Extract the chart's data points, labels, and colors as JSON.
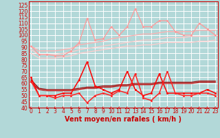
{
  "x": [
    0,
    1,
    2,
    3,
    4,
    5,
    6,
    7,
    8,
    9,
    10,
    11,
    12,
    13,
    14,
    15,
    16,
    17,
    18,
    19,
    20,
    21,
    22,
    23
  ],
  "xlabel": "Vent moyen/en rafales ( km/h )",
  "ylim": [
    40,
    128
  ],
  "yticks": [
    40,
    45,
    50,
    55,
    60,
    65,
    70,
    75,
    80,
    85,
    90,
    95,
    100,
    105,
    110,
    115,
    120,
    125
  ],
  "xticks": [
    0,
    1,
    2,
    3,
    4,
    5,
    6,
    7,
    8,
    9,
    10,
    11,
    12,
    13,
    14,
    15,
    16,
    17,
    18,
    19,
    20,
    21,
    22,
    23
  ],
  "background_color": "#b2d8d8",
  "grid_color": "#ffffff",
  "series": [
    {
      "data": [
        91,
        84,
        84,
        83,
        83,
        87,
        94,
        114,
        96,
        97,
        107,
        100,
        107,
        122,
        107,
        107,
        112,
        112,
        103,
        100,
        100,
        110,
        105,
        100
      ],
      "color": "#ff9999",
      "linewidth": 0.9,
      "marker": "o",
      "markersize": 1.8,
      "zorder": 3
    },
    {
      "data": [
        91,
        87,
        87,
        87,
        88,
        89,
        92,
        93,
        94,
        95,
        97,
        98,
        99,
        100,
        101,
        101,
        102,
        103,
        103,
        103,
        103,
        104,
        104,
        104
      ],
      "color": "#ffb0b0",
      "linewidth": 0.9,
      "marker": null,
      "markersize": 0,
      "zorder": 2
    },
    {
      "data": [
        88,
        84,
        84,
        84,
        85,
        86,
        88,
        89,
        90,
        91,
        92,
        93,
        94,
        95,
        96,
        96,
        97,
        98,
        98,
        98,
        99,
        99,
        99,
        100
      ],
      "color": "#ffcccc",
      "linewidth": 0.9,
      "marker": null,
      "markersize": 0,
      "zorder": 2
    },
    {
      "data": [
        85,
        81,
        81,
        81,
        82,
        83,
        85,
        86,
        87,
        88,
        89,
        90,
        91,
        91,
        92,
        92,
        93,
        94,
        94,
        94,
        94,
        95,
        95,
        96
      ],
      "color": "#ffcccc",
      "linewidth": 0.9,
      "marker": null,
      "markersize": 0,
      "zorder": 2
    },
    {
      "data": [
        65,
        50,
        50,
        50,
        52,
        52,
        63,
        78,
        58,
        55,
        52,
        55,
        70,
        55,
        50,
        52,
        68,
        52,
        52,
        52,
        52,
        52,
        55,
        52
      ],
      "color": "#ff0000",
      "linewidth": 1.1,
      "marker": "o",
      "markersize": 1.8,
      "zorder": 5
    },
    {
      "data": [
        63,
        56,
        55,
        55,
        55,
        55,
        56,
        57,
        57,
        58,
        58,
        59,
        59,
        60,
        60,
        60,
        61,
        61,
        61,
        61,
        61,
        62,
        62,
        62
      ],
      "color": "#990000",
      "linewidth": 0.9,
      "marker": null,
      "markersize": 0,
      "zorder": 4
    },
    {
      "data": [
        61,
        55,
        54,
        54,
        54,
        54,
        55,
        56,
        56,
        57,
        57,
        58,
        58,
        59,
        59,
        59,
        60,
        60,
        60,
        60,
        60,
        61,
        61,
        61
      ],
      "color": "#bb0000",
      "linewidth": 0.9,
      "marker": null,
      "markersize": 0,
      "zorder": 4
    },
    {
      "data": [
        62,
        50,
        50,
        48,
        50,
        50,
        52,
        44,
        50,
        52,
        50,
        54,
        52,
        68,
        48,
        46,
        52,
        70,
        52,
        50,
        50,
        52,
        52,
        50
      ],
      "color": "#ff2222",
      "linewidth": 1.1,
      "marker": "o",
      "markersize": 1.8,
      "zorder": 5
    }
  ],
  "arrow_color": "#cc0000",
  "xlabel_fontsize": 7,
  "tick_fontsize": 5.5,
  "tick_color": "#cc0000",
  "axis_color": "#cc0000",
  "xlim": [
    -0.3,
    23.3
  ]
}
